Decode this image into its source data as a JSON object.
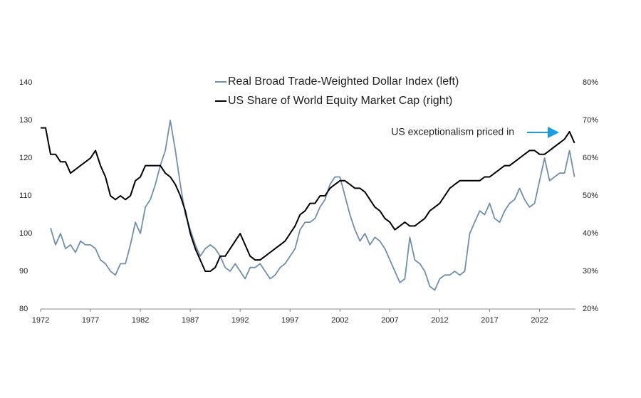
{
  "chart_data": {
    "type": "line",
    "annotation": "US exceptionalism priced in",
    "x": [
      1972,
      1972.5,
      1973,
      1973.5,
      1974,
      1974.5,
      1975,
      1975.5,
      1976,
      1976.5,
      1977,
      1977.5,
      1978,
      1978.5,
      1979,
      1979.5,
      1980,
      1980.5,
      1981,
      1981.5,
      1982,
      1982.5,
      1983,
      1983.5,
      1984,
      1984.5,
      1985,
      1985.5,
      1986,
      1986.5,
      1987,
      1987.5,
      1988,
      1988.5,
      1989,
      1989.5,
      1990,
      1990.5,
      1991,
      1991.5,
      1992,
      1992.5,
      1993,
      1993.5,
      1994,
      1994.5,
      1995,
      1995.5,
      1996,
      1996.5,
      1997,
      1997.5,
      1998,
      1998.5,
      1999,
      1999.5,
      2000,
      2000.5,
      2001,
      2001.5,
      2002,
      2002.5,
      2003,
      2003.5,
      2004,
      2004.5,
      2005,
      2005.5,
      2006,
      2006.5,
      2007,
      2007.5,
      2008,
      2008.5,
      2009,
      2009.5,
      2010,
      2010.5,
      2011,
      2011.5,
      2012,
      2012.5,
      2013,
      2013.5,
      2014,
      2014.5,
      2015,
      2015.5,
      2016,
      2016.5,
      2017,
      2017.5,
      2018,
      2018.5,
      2019,
      2019.5,
      2020,
      2020.5,
      2021,
      2021.5,
      2022,
      2022.5,
      2023,
      2023.5,
      2024,
      2024.5,
      2025,
      2025.5
    ],
    "series": [
      {
        "name": "Real Broad Trade-Weighted Dollar Index (left)",
        "color": "#6f8fad",
        "axis": "y",
        "values": [
          null,
          null,
          101.5,
          97,
          100,
          96,
          97,
          95,
          98,
          97,
          97,
          96,
          93,
          92,
          90,
          89,
          92,
          92,
          97,
          103,
          100,
          107,
          109,
          113,
          118,
          122,
          130,
          122,
          113,
          105,
          101,
          97,
          94,
          96,
          97,
          96,
          94,
          91,
          90,
          92,
          90,
          88,
          91,
          91,
          92,
          90,
          88,
          89,
          91,
          92,
          94,
          96,
          101,
          103,
          103,
          104,
          107,
          109,
          113,
          115,
          115,
          110,
          105,
          101,
          98,
          100,
          97,
          99,
          98,
          96,
          93,
          90,
          87,
          88,
          99,
          93,
          92,
          90,
          86,
          85,
          88,
          89,
          89,
          90,
          89,
          90,
          100,
          103,
          106,
          105,
          108,
          104,
          103,
          106,
          108,
          109,
          112,
          109,
          107,
          108,
          114,
          120,
          114,
          115,
          116,
          116,
          122,
          115
        ]
      },
      {
        "name": "US Share of World Equity Market Cap (right)",
        "color": "#000000",
        "axis": "y2",
        "values": [
          68,
          68,
          61,
          61,
          59,
          59,
          56,
          57,
          58,
          59,
          60,
          62,
          58,
          55,
          50,
          49,
          50,
          49,
          50,
          54,
          55,
          58,
          58,
          58,
          58,
          56,
          55,
          53,
          50,
          46,
          40,
          36,
          33,
          30,
          30,
          31,
          34,
          34,
          36,
          38,
          40,
          37,
          34,
          33,
          33,
          34,
          35,
          36,
          37,
          38,
          40,
          42,
          45,
          46,
          48,
          48,
          50,
          50,
          52,
          53,
          54,
          54,
          53,
          52,
          52,
          51,
          49,
          47,
          46,
          44,
          43,
          41,
          42,
          43,
          42,
          42,
          43,
          44,
          46,
          47,
          48,
          50,
          52,
          53,
          54,
          54,
          54,
          54,
          54,
          55,
          55,
          56,
          57,
          58,
          58,
          59,
          60,
          61,
          62,
          62,
          61,
          61,
          62,
          63,
          64,
          65,
          67,
          64
        ]
      }
    ],
    "xlim": [
      1972,
      2025.6
    ],
    "xticks": [
      1972,
      1977,
      1982,
      1987,
      1992,
      1997,
      2002,
      2007,
      2012,
      2017,
      2022
    ],
    "ylim": [
      80,
      140
    ],
    "yticks": [
      80,
      90,
      100,
      110,
      120,
      130,
      140
    ],
    "y2lim": [
      20,
      80
    ],
    "y2ticks": [
      {
        "value": 20,
        "label": "20%"
      },
      {
        "value": 30,
        "label": "30%"
      },
      {
        "value": 40,
        "label": "40%"
      },
      {
        "value": 50,
        "label": "50%"
      },
      {
        "value": 60,
        "label": "60%"
      },
      {
        "value": 70,
        "label": "70%"
      },
      {
        "value": 80,
        "label": "80%"
      }
    ]
  }
}
